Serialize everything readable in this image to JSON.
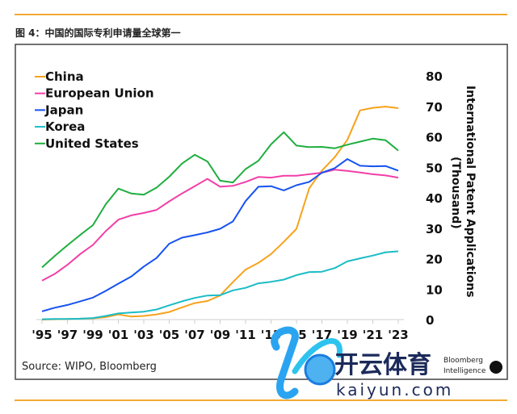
{
  "header": {
    "title": "图 4：中国的国际专利申请量全球第一"
  },
  "source": "Source: WIPO, Bloomberg",
  "logo": {
    "brand": "Bloomberg Intelligence",
    "watermark_cn": "开云体育",
    "watermark_url": "kaiyun.com"
  },
  "chart_data": {
    "type": "line",
    "title": "",
    "xlabel": "",
    "ylabel": "International Patent Applications (Thousand)",
    "ylabel_line1": "International Patent Applications",
    "ylabel_line2": "(Thousand)",
    "ylim": [
      0,
      80
    ],
    "yticks": [
      0,
      10,
      20,
      30,
      40,
      50,
      60,
      70,
      80
    ],
    "x": [
      1995,
      1996,
      1997,
      1998,
      1999,
      2000,
      2001,
      2002,
      2003,
      2004,
      2005,
      2006,
      2007,
      2008,
      2009,
      2010,
      2011,
      2012,
      2013,
      2014,
      2015,
      2016,
      2017,
      2018,
      2019,
      2020,
      2021,
      2022,
      2023
    ],
    "xtick_labels": [
      "'95",
      "'97",
      "'99",
      "'01",
      "'03",
      "'05",
      "'07",
      "'09",
      "'11",
      "'13",
      "'15",
      "'17",
      "'19",
      "'21",
      "'23"
    ],
    "legend_position": "top-left",
    "series": [
      {
        "name": "China",
        "color": "#f7a21b",
        "values": [
          0,
          0.1,
          0.2,
          0.3,
          0.4,
          0.8,
          1.7,
          1.0,
          1.2,
          1.7,
          2.5,
          4.0,
          5.4,
          6.1,
          7.9,
          12.3,
          16.4,
          18.6,
          21.5,
          25.5,
          29.8,
          43.1,
          48.9,
          53.3,
          59.0,
          68.7,
          69.5,
          69.9,
          69.4
        ]
      },
      {
        "name": "European Union",
        "color": "#f23fa8",
        "values": [
          12.8,
          15.0,
          18.0,
          21.5,
          24.5,
          29.0,
          32.8,
          34.2,
          35.0,
          36.0,
          38.8,
          41.4,
          43.8,
          46.2,
          43.6,
          43.9,
          45.2,
          46.8,
          46.6,
          47.2,
          47.2,
          47.7,
          48.2,
          49.2,
          48.8,
          48.3,
          47.7,
          47.3,
          46.6
        ]
      },
      {
        "name": "Japan",
        "color": "#1652f0",
        "values": [
          2.7,
          3.9,
          4.8,
          6.0,
          7.2,
          9.4,
          11.8,
          14.1,
          17.4,
          20.2,
          24.9,
          26.9,
          27.7,
          28.6,
          29.8,
          32.2,
          38.9,
          43.6,
          43.8,
          42.4,
          44.1,
          45.2,
          48.2,
          49.7,
          52.7,
          50.5,
          50.3,
          50.4,
          48.9
        ]
      },
      {
        "name": "Korea",
        "color": "#1bbcc6",
        "values": [
          0.1,
          0.2,
          0.2,
          0.3,
          0.5,
          1.2,
          2.0,
          2.3,
          2.6,
          3.3,
          4.7,
          6.0,
          7.1,
          7.9,
          8.0,
          9.6,
          10.4,
          11.9,
          12.4,
          13.1,
          14.6,
          15.6,
          15.7,
          16.9,
          19.1,
          20.1,
          21.0,
          22.1,
          22.4
        ]
      },
      {
        "name": "United States",
        "color": "#1fae3f",
        "values": [
          17.1,
          20.9,
          24.4,
          27.8,
          31.0,
          37.8,
          43.0,
          41.4,
          41.0,
          43.3,
          46.9,
          51.2,
          54.1,
          51.9,
          45.6,
          45.0,
          49.4,
          52.1,
          57.5,
          61.5,
          57.1,
          56.6,
          56.7,
          56.2,
          57.4,
          58.4,
          59.4,
          58.9,
          55.5
        ]
      }
    ]
  }
}
